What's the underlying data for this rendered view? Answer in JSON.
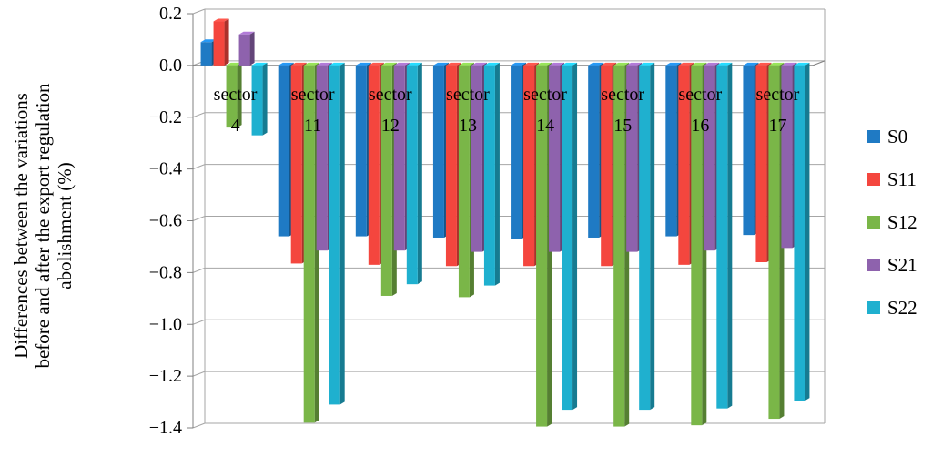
{
  "chart_data": {
    "type": "bar",
    "style": "3d-clustered-column",
    "categories": [
      {
        "line1": "sector",
        "line2": "4"
      },
      {
        "line1": "sector",
        "line2": "11"
      },
      {
        "line1": "sector",
        "line2": "12"
      },
      {
        "line1": "sector",
        "line2": "13"
      },
      {
        "line1": "sector",
        "line2": "14"
      },
      {
        "line1": "sector",
        "line2": "15"
      },
      {
        "line1": "sector",
        "line2": "16"
      },
      {
        "line1": "sector",
        "line2": "17"
      }
    ],
    "series": [
      {
        "name": "S0",
        "color": "#1f7ac4",
        "values": [
          0.09,
          -0.66,
          -0.66,
          -0.665,
          -0.67,
          -0.665,
          -0.66,
          -0.655
        ]
      },
      {
        "name": "S11",
        "color": "#f4463e",
        "values": [
          0.17,
          -0.765,
          -0.77,
          -0.775,
          -0.775,
          -0.775,
          -0.77,
          -0.76
        ]
      },
      {
        "name": "S12",
        "color": "#7ab648",
        "values": [
          -0.24,
          -1.38,
          -0.89,
          -0.895,
          -1.395,
          -1.395,
          -1.39,
          -1.365
        ]
      },
      {
        "name": "S21",
        "color": "#8e62ad",
        "values": [
          0.12,
          -0.715,
          -0.715,
          -0.72,
          -0.72,
          -0.72,
          -0.715,
          -0.705
        ]
      },
      {
        "name": "S22",
        "color": "#1fb0cf",
        "values": [
          -0.27,
          -1.31,
          -0.845,
          -0.85,
          -1.33,
          -1.33,
          -1.325,
          -1.295
        ]
      }
    ],
    "ylabel_lines": [
      "Differences between the variations",
      "before and after the export regulation",
      "abolishment (%)"
    ],
    "ylim": [
      -1.4,
      0.2
    ],
    "yticks": [
      "0.2",
      "0.0",
      "−0.2",
      "−0.4",
      "−0.6",
      "−0.8",
      "−1.0",
      "−1.2",
      "−1.4"
    ],
    "grid": true,
    "legend_position": "right"
  }
}
